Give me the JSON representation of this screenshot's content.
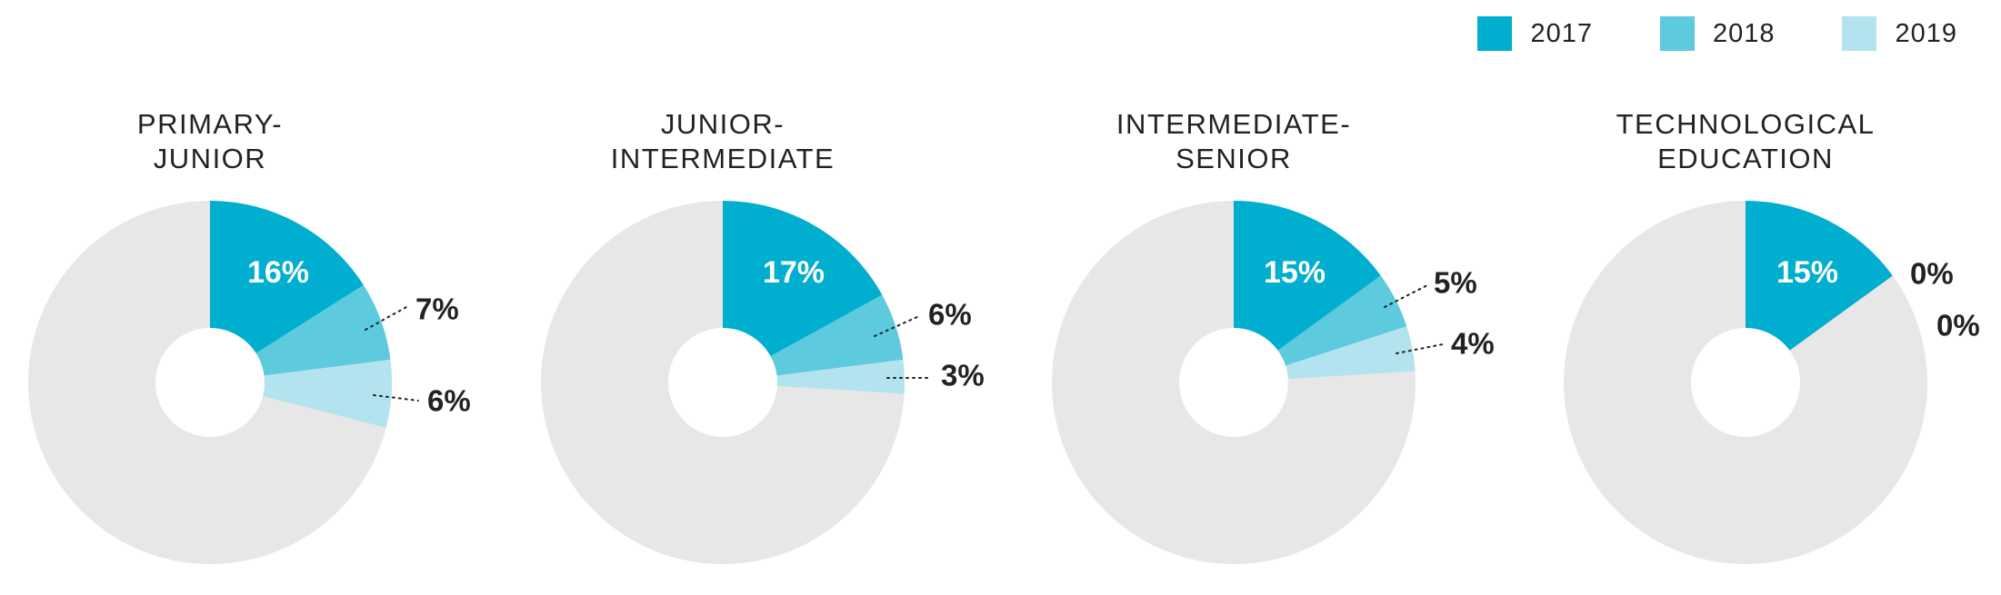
{
  "legend": {
    "items": [
      {
        "label": "2017",
        "color": "#00AECF"
      },
      {
        "label": "2018",
        "color": "#5DCADD"
      },
      {
        "label": "2019",
        "color": "#B2E3EE"
      }
    ]
  },
  "colors": {
    "remainder": "#E7E7E8",
    "hole": "#FFFFFF",
    "title": "#222222",
    "label_dark": "#222222",
    "label_light": "#FFFFFF"
  },
  "chart_data": [
    {
      "type": "pie",
      "title_lines": [
        "PRIMARY-",
        "JUNIOR"
      ],
      "series": [
        {
          "name": "2017",
          "value": 16,
          "label": "16%"
        },
        {
          "name": "2018",
          "value": 7,
          "label": "7%"
        },
        {
          "name": "2019",
          "value": 6,
          "label": "6%"
        }
      ]
    },
    {
      "type": "pie",
      "title_lines": [
        "JUNIOR-",
        "INTERMEDIATE"
      ],
      "series": [
        {
          "name": "2017",
          "value": 17,
          "label": "17%"
        },
        {
          "name": "2018",
          "value": 6,
          "label": "6%"
        },
        {
          "name": "2019",
          "value": 3,
          "label": "3%"
        }
      ]
    },
    {
      "type": "pie",
      "title_lines": [
        "INTERMEDIATE-",
        "SENIOR"
      ],
      "series": [
        {
          "name": "2017",
          "value": 15,
          "label": "15%"
        },
        {
          "name": "2018",
          "value": 5,
          "label": "5%"
        },
        {
          "name": "2019",
          "value": 4,
          "label": "4%"
        }
      ]
    },
    {
      "type": "pie",
      "title_lines": [
        "TECHNOLOGICAL",
        "EDUCATION"
      ],
      "series": [
        {
          "name": "2017",
          "value": 15,
          "label": "15%"
        },
        {
          "name": "2018",
          "value": 0,
          "label": "0%"
        },
        {
          "name": "2019",
          "value": 0,
          "label": "0%"
        }
      ]
    }
  ]
}
